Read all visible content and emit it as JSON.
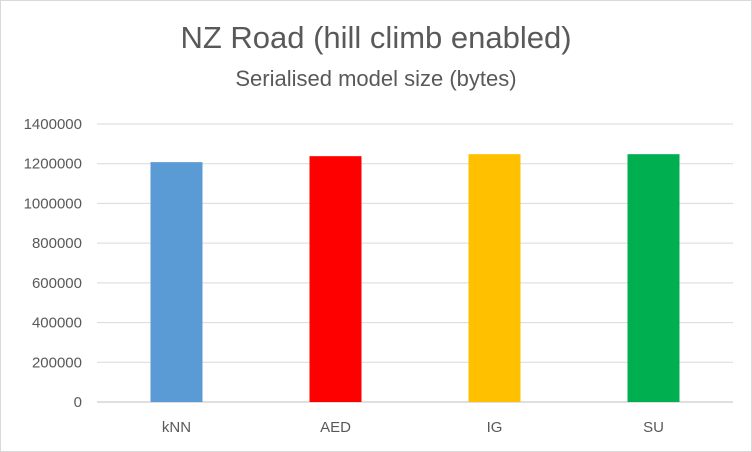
{
  "chart_data": {
    "type": "bar",
    "title": "NZ Road (hill climb enabled)",
    "subtitle": "Serialised model size (bytes)",
    "categories": [
      "kNN",
      "AED",
      "IG",
      "SU"
    ],
    "values": [
      1208000,
      1238000,
      1248000,
      1248000
    ],
    "colors": [
      "#5b9bd5",
      "#ff0000",
      "#ffc000",
      "#00b050"
    ],
    "ylim": [
      0,
      1400000
    ],
    "yticks": [
      0,
      200000,
      400000,
      600000,
      800000,
      1000000,
      1200000,
      1400000
    ],
    "ytick_labels": [
      "0",
      "200000",
      "400000",
      "600000",
      "800000",
      "1000000",
      "1200000",
      "1400000"
    ],
    "grid": true,
    "legend": "none"
  }
}
